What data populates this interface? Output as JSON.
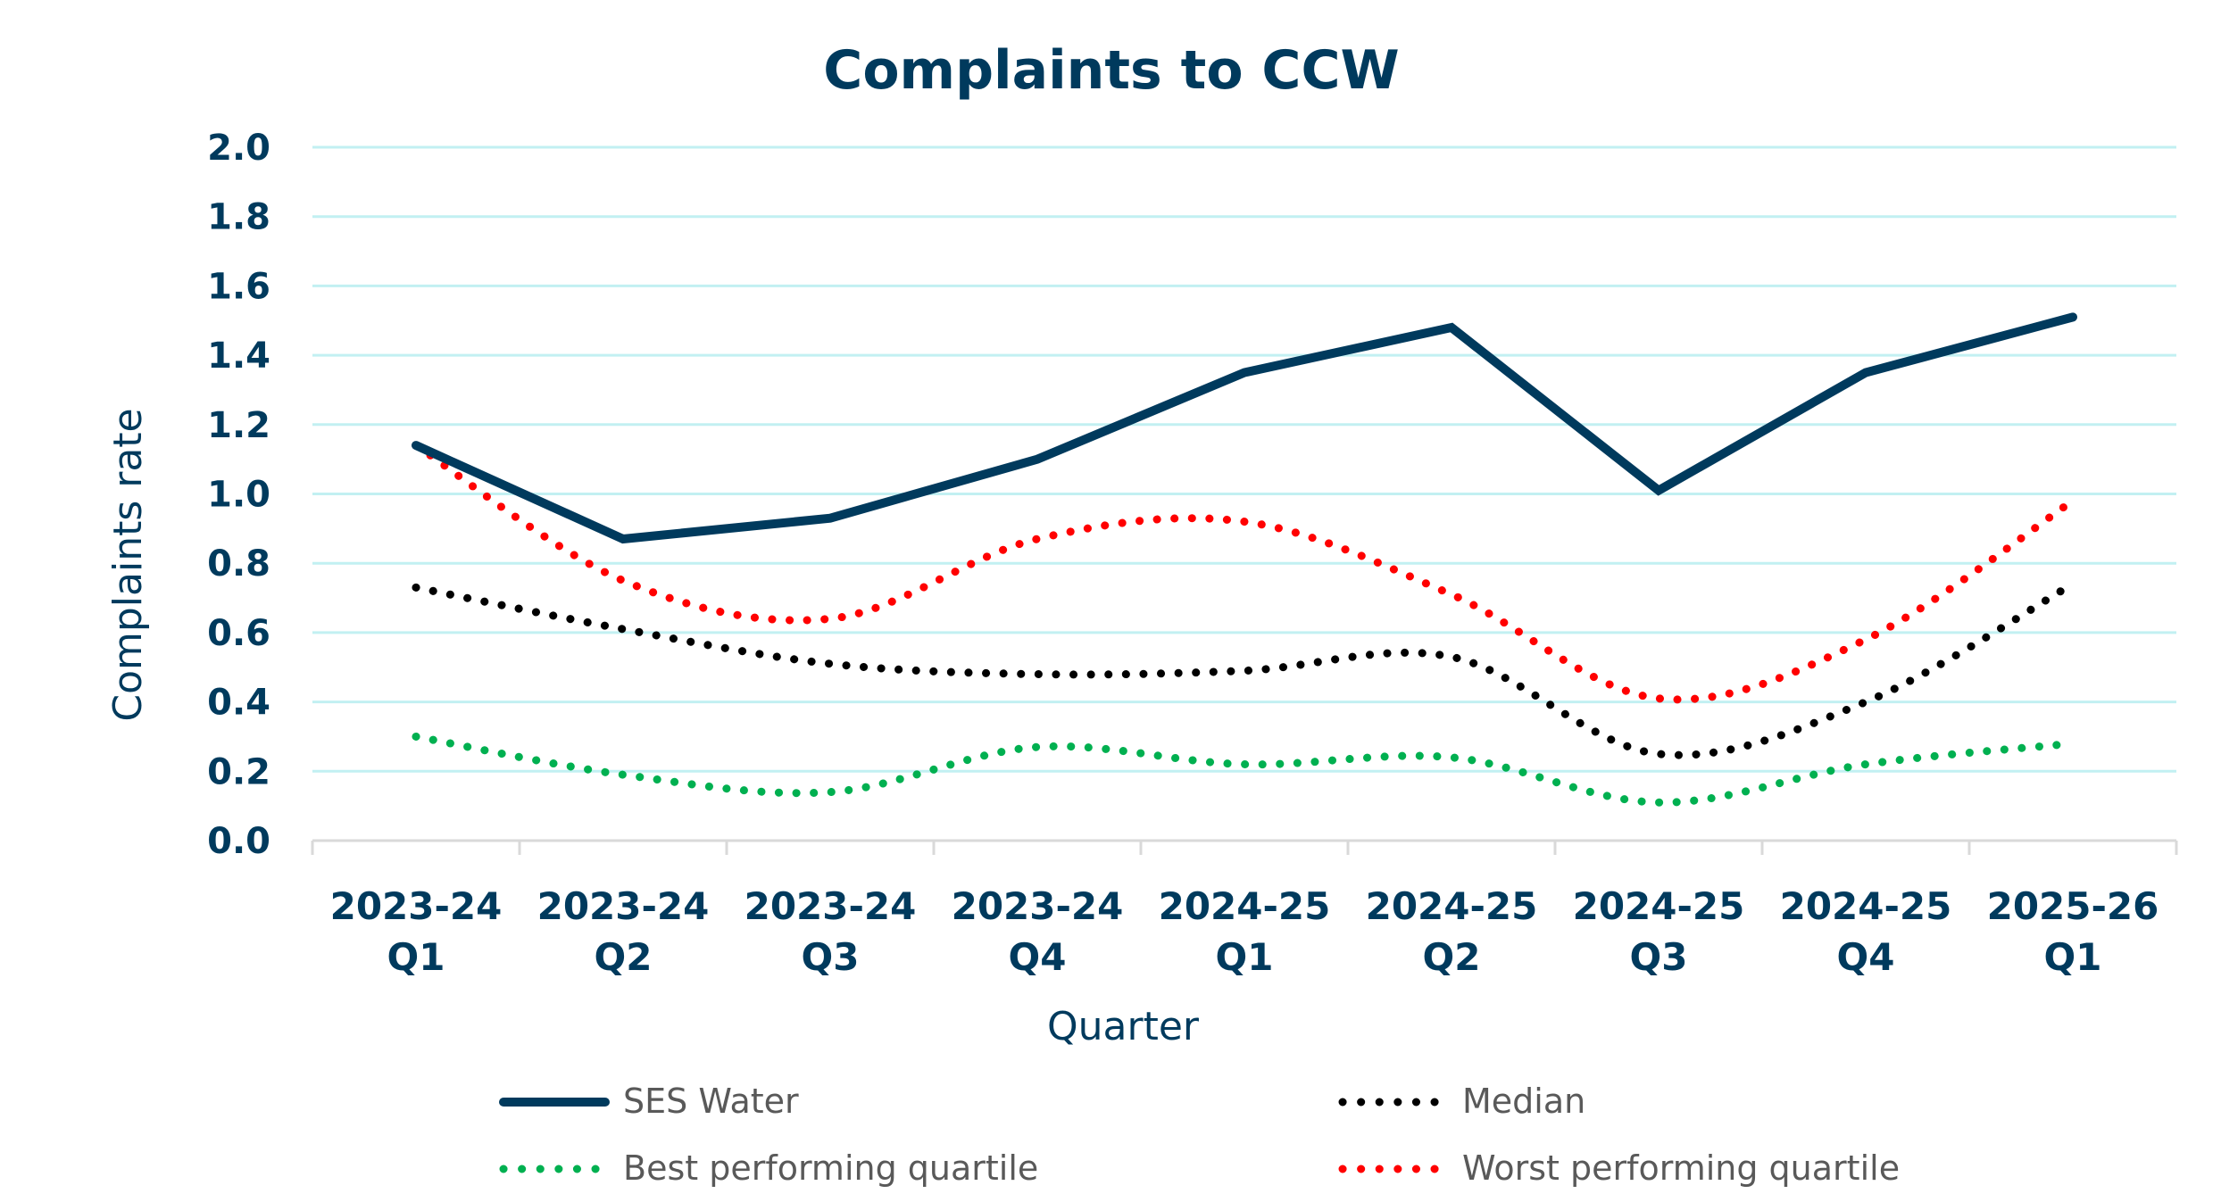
{
  "chart_data": {
    "type": "line",
    "title": "Complaints to CCW",
    "xlabel": "Quarter",
    "ylabel": "Complaints rate",
    "ylim": [
      0,
      2.0
    ],
    "yticks": [
      "0.0",
      "0.2",
      "0.4",
      "0.6",
      "0.8",
      "1.0",
      "1.2",
      "1.4",
      "1.6",
      "1.8",
      "2.0"
    ],
    "grid": true,
    "legend_position": "bottom",
    "categories": [
      [
        "2023-24",
        "Q1"
      ],
      [
        "2023-24",
        "Q2"
      ],
      [
        "2023-24",
        "Q3"
      ],
      [
        "2023-24",
        "Q4"
      ],
      [
        "2024-25",
        "Q1"
      ],
      [
        "2024-25",
        "Q2"
      ],
      [
        "2024-25",
        "Q3"
      ],
      [
        "2024-25",
        "Q4"
      ],
      [
        "2025-26",
        "Q1"
      ]
    ],
    "series": [
      {
        "name": "SES Water",
        "style": "solid",
        "color": "#003a5d",
        "values": [
          1.14,
          0.87,
          0.93,
          1.1,
          1.35,
          1.48,
          1.01,
          1.35,
          1.51
        ]
      },
      {
        "name": "Median",
        "style": "dotted",
        "color": "#000000",
        "values": [
          0.73,
          0.61,
          0.51,
          0.48,
          0.49,
          0.53,
          0.25,
          0.4,
          0.74
        ]
      },
      {
        "name": "Best performing quartile",
        "style": "dotted",
        "color": "#00b050",
        "values": [
          0.3,
          0.19,
          0.14,
          0.27,
          0.22,
          0.24,
          0.11,
          0.22,
          0.28
        ]
      },
      {
        "name": "Worst performing quartile",
        "style": "dotted",
        "color": "#ff0000",
        "values": [
          1.14,
          0.75,
          0.64,
          0.87,
          0.92,
          0.71,
          0.41,
          0.58,
          0.98
        ]
      }
    ]
  }
}
